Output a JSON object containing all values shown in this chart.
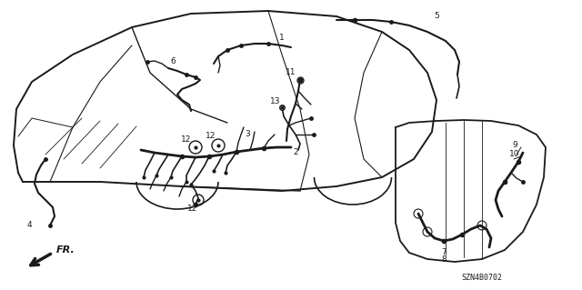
{
  "background_color": "#ffffff",
  "diagram_code": "SZN4B0702",
  "line_color": "#1a1a1a",
  "lw": 1.0,
  "label_fontsize": 6.5,
  "figsize": [
    6.4,
    3.19
  ],
  "dpi": 100
}
